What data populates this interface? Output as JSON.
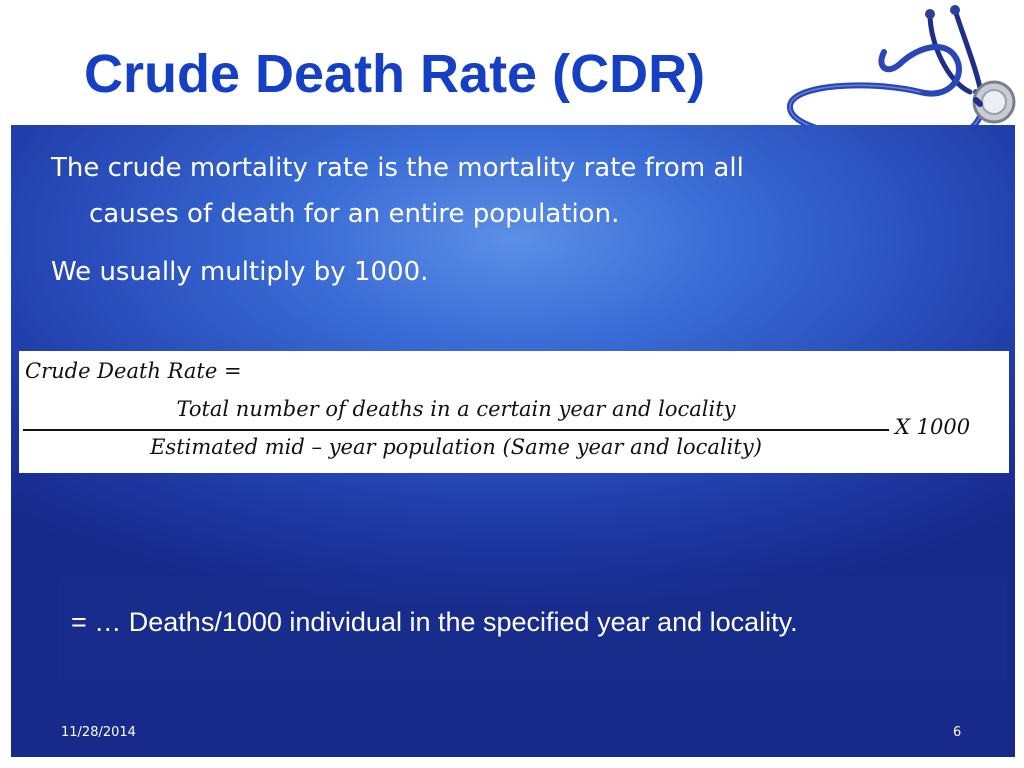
{
  "slide": {
    "title": "Crude Death Rate (CDR)",
    "bullets": [
      {
        "line1": "The crude mortality rate is the mortality rate from all",
        "line2": "causes of death for an entire population."
      },
      {
        "line1": "We usually multiply by 1000."
      }
    ],
    "formula": {
      "lhs": "Crude Death Rate =",
      "numerator": "Total number of deaths in a certain year and locality",
      "denominator": "Estimated mid – year population (Same year and locality)",
      "multiplier": "X 1000"
    },
    "result": "= … Deaths/1000 individual in the specified year and locality.",
    "footer": {
      "date": "11/28/2014",
      "page": "6"
    },
    "decoration": {
      "icon": "stethoscope-icon",
      "title_color": "#1540c4",
      "panel_color": "#2a4fbd"
    }
  }
}
